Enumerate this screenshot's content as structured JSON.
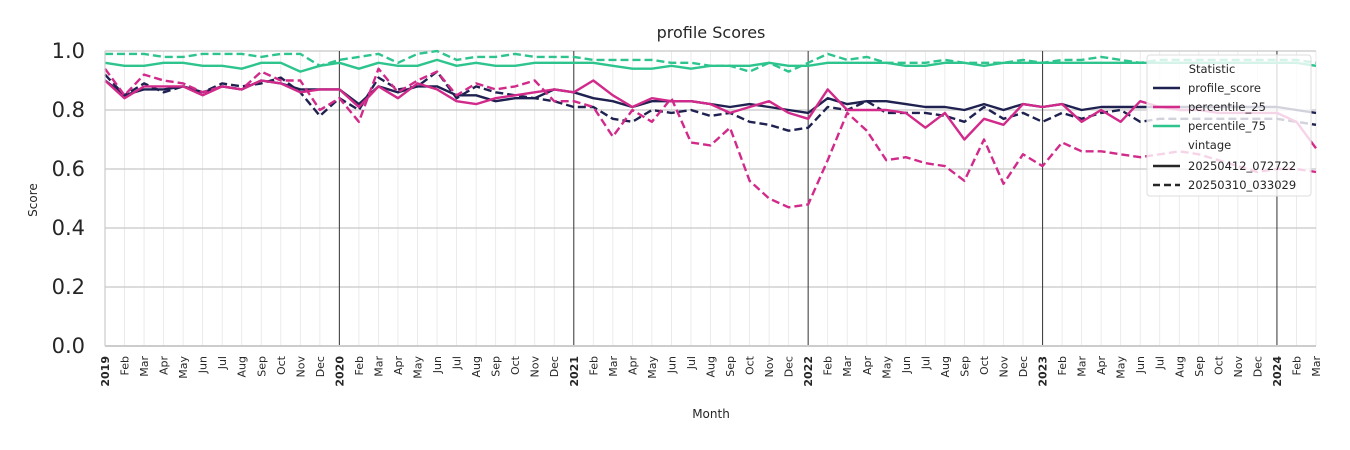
{
  "chart_data": {
    "type": "line",
    "title": "profile Scores",
    "xlabel": "Month",
    "ylabel": "Score",
    "ylim": [
      0,
      1.0
    ],
    "yticks": [
      "0.0",
      "0.2",
      "0.4",
      "0.6",
      "0.8",
      "1.0"
    ],
    "x_start": "2019-01",
    "x_end": "2024-02",
    "month_labels": [
      "Jan",
      "Feb",
      "Mar",
      "Apr",
      "May",
      "Jun",
      "Jul",
      "Aug",
      "Sep",
      "Oct",
      "Nov",
      "Dec"
    ],
    "year_labels": [
      "2019",
      "2020",
      "2021",
      "2022",
      "2023",
      "2024"
    ],
    "grid": true,
    "legend": {
      "placement": "top-right",
      "title": "Statistic",
      "items": [
        "profile_score",
        "percentile_25",
        "percentile_75"
      ],
      "style_title": "vintage",
      "style_items": [
        "20250412_072722",
        "20250310_033029"
      ]
    },
    "colors": {
      "profile_score": "#1f2150",
      "percentile_25": "#d12a8a",
      "percentile_75": "#2ec48e"
    },
    "series": [
      {
        "name": "profile_score",
        "vintage": "20250412_072722",
        "dash": false,
        "values": [
          0.9,
          0.85,
          0.87,
          0.87,
          0.88,
          0.86,
          0.88,
          0.87,
          0.9,
          0.89,
          0.87,
          0.87,
          0.87,
          0.82,
          0.88,
          0.86,
          0.88,
          0.88,
          0.85,
          0.85,
          0.83,
          0.84,
          0.84,
          0.87,
          0.86,
          0.84,
          0.83,
          0.81,
          0.83,
          0.83,
          0.83,
          0.82,
          0.81,
          0.82,
          0.81,
          0.8,
          0.79,
          0.84,
          0.82,
          0.83,
          0.83,
          0.82,
          0.81,
          0.81,
          0.8,
          0.82,
          0.8,
          0.82,
          0.81,
          0.82,
          0.8,
          0.81,
          0.81,
          0.81,
          0.81,
          0.81,
          0.81,
          0.81,
          0.81,
          0.81,
          0.81,
          0.8,
          0.79
        ]
      },
      {
        "name": "profile_score",
        "vintage": "20250310_033029",
        "dash": true,
        "values": [
          0.92,
          0.85,
          0.89,
          0.86,
          0.88,
          0.86,
          0.89,
          0.88,
          0.89,
          0.91,
          0.86,
          0.78,
          0.84,
          0.8,
          0.91,
          0.87,
          0.88,
          0.93,
          0.84,
          0.88,
          0.86,
          0.85,
          0.84,
          0.83,
          0.81,
          0.81,
          0.77,
          0.76,
          0.8,
          0.79,
          0.8,
          0.78,
          0.79,
          0.76,
          0.75,
          0.73,
          0.74,
          0.81,
          0.8,
          0.83,
          0.79,
          0.79,
          0.79,
          0.78,
          0.76,
          0.81,
          0.77,
          0.79,
          0.76,
          0.79,
          0.77,
          0.79,
          0.8,
          0.76,
          0.77,
          0.77,
          0.77,
          0.77,
          0.77,
          0.77,
          0.77,
          0.76,
          0.75
        ]
      },
      {
        "name": "percentile_25",
        "vintage": "20250412_072722",
        "dash": false,
        "values": [
          0.9,
          0.84,
          0.88,
          0.88,
          0.88,
          0.85,
          0.88,
          0.87,
          0.9,
          0.89,
          0.86,
          0.87,
          0.87,
          0.81,
          0.88,
          0.84,
          0.89,
          0.87,
          0.83,
          0.82,
          0.84,
          0.85,
          0.86,
          0.87,
          0.86,
          0.9,
          0.85,
          0.81,
          0.84,
          0.83,
          0.83,
          0.82,
          0.79,
          0.81,
          0.83,
          0.79,
          0.77,
          0.87,
          0.8,
          0.8,
          0.8,
          0.79,
          0.74,
          0.79,
          0.7,
          0.77,
          0.75,
          0.82,
          0.81,
          0.82,
          0.76,
          0.8,
          0.76,
          0.83,
          0.81,
          0.8,
          0.8,
          0.79,
          0.79,
          0.79,
          0.79,
          0.76,
          0.67
        ]
      },
      {
        "name": "percentile_25",
        "vintage": "20250310_033029",
        "dash": true,
        "values": [
          0.94,
          0.85,
          0.92,
          0.9,
          0.89,
          0.86,
          0.88,
          0.87,
          0.93,
          0.9,
          0.9,
          0.8,
          0.84,
          0.76,
          0.94,
          0.86,
          0.9,
          0.93,
          0.85,
          0.89,
          0.87,
          0.88,
          0.9,
          0.83,
          0.83,
          0.81,
          0.71,
          0.8,
          0.76,
          0.84,
          0.69,
          0.68,
          0.74,
          0.56,
          0.5,
          0.47,
          0.48,
          0.63,
          0.79,
          0.73,
          0.63,
          0.64,
          0.62,
          0.61,
          0.56,
          0.7,
          0.55,
          0.65,
          0.61,
          0.69,
          0.66,
          0.66,
          0.65,
          0.64,
          0.65,
          0.66,
          0.65,
          0.63,
          0.61,
          0.59,
          0.6,
          0.6,
          0.59
        ]
      },
      {
        "name": "percentile_75",
        "vintage": "20250412_072722",
        "dash": false,
        "values": [
          0.96,
          0.95,
          0.95,
          0.96,
          0.96,
          0.95,
          0.95,
          0.94,
          0.96,
          0.96,
          0.93,
          0.95,
          0.96,
          0.94,
          0.96,
          0.95,
          0.95,
          0.97,
          0.95,
          0.96,
          0.95,
          0.95,
          0.96,
          0.96,
          0.96,
          0.96,
          0.95,
          0.94,
          0.94,
          0.95,
          0.94,
          0.95,
          0.95,
          0.95,
          0.96,
          0.95,
          0.95,
          0.96,
          0.96,
          0.96,
          0.96,
          0.95,
          0.95,
          0.96,
          0.96,
          0.95,
          0.96,
          0.96,
          0.96,
          0.96,
          0.96,
          0.96,
          0.96,
          0.96,
          0.96,
          0.96,
          0.96,
          0.96,
          0.96,
          0.96,
          0.96,
          0.96,
          0.95
        ]
      },
      {
        "name": "percentile_75",
        "vintage": "20250310_033029",
        "dash": true,
        "values": [
          0.99,
          0.99,
          0.99,
          0.98,
          0.98,
          0.99,
          0.99,
          0.99,
          0.98,
          0.99,
          0.99,
          0.95,
          0.97,
          0.98,
          0.99,
          0.96,
          0.99,
          1.0,
          0.97,
          0.98,
          0.98,
          0.99,
          0.98,
          0.98,
          0.98,
          0.97,
          0.97,
          0.97,
          0.97,
          0.96,
          0.96,
          0.95,
          0.95,
          0.93,
          0.96,
          0.93,
          0.96,
          0.99,
          0.97,
          0.98,
          0.96,
          0.96,
          0.96,
          0.97,
          0.96,
          0.96,
          0.96,
          0.97,
          0.96,
          0.97,
          0.97,
          0.98,
          0.97,
          0.96,
          0.97,
          0.97,
          0.97,
          0.97,
          0.97,
          0.97,
          0.97,
          0.97,
          0.96
        ]
      }
    ]
  }
}
